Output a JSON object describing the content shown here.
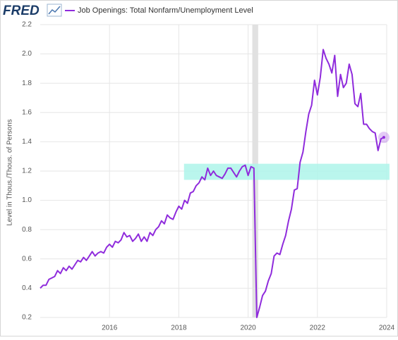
{
  "chart_data": {
    "type": "line",
    "logo": "FRED",
    "title": "Job Openings: Total Nonfarm/Unemployment Level",
    "y_label": "Level in Thous./Thous. of Persons",
    "xlim": [
      2014,
      2024
    ],
    "xticks": [
      2016,
      2018,
      2020,
      2022,
      2024
    ],
    "ylim": [
      0.2,
      2.2
    ],
    "yticks": [
      0.2,
      0.4,
      0.6,
      0.8,
      {
        "value": 1,
        "label": "1.0"
      },
      1.2,
      1.4,
      1.6,
      1.8,
      {
        "value": 2,
        "label": "2.0"
      },
      2.2
    ],
    "grid": true,
    "recession_shading": [
      {
        "xlim": [
          2020.12,
          2020.29
        ],
        "color": "#e1e1e1"
      }
    ],
    "highlight": {
      "xlim": [
        2018.15,
        2024.08
      ],
      "ylim": [
        1.14,
        1.25
      ],
      "color": "#aef5ea"
    },
    "x": [
      2014.0,
      2014.083,
      2014.167,
      2014.25,
      2014.333,
      2014.417,
      2014.5,
      2014.583,
      2014.667,
      2014.75,
      2014.833,
      2014.917,
      2015.0,
      2015.083,
      2015.167,
      2015.25,
      2015.333,
      2015.417,
      2015.5,
      2015.583,
      2015.667,
      2015.75,
      2015.833,
      2015.917,
      2016.0,
      2016.083,
      2016.167,
      2016.25,
      2016.333,
      2016.417,
      2016.5,
      2016.583,
      2016.667,
      2016.75,
      2016.833,
      2016.917,
      2017.0,
      2017.083,
      2017.167,
      2017.25,
      2017.333,
      2017.417,
      2017.5,
      2017.583,
      2017.667,
      2017.75,
      2017.833,
      2017.917,
      2018.0,
      2018.083,
      2018.167,
      2018.25,
      2018.333,
      2018.417,
      2018.5,
      2018.583,
      2018.667,
      2018.75,
      2018.833,
      2018.917,
      2019.0,
      2019.083,
      2019.167,
      2019.25,
      2019.333,
      2019.417,
      2019.5,
      2019.583,
      2019.667,
      2019.75,
      2019.833,
      2019.917,
      2020.0,
      2020.083,
      2020.167,
      2020.25,
      2020.333,
      2020.417,
      2020.5,
      2020.583,
      2020.667,
      2020.75,
      2020.833,
      2020.917,
      2021.0,
      2021.083,
      2021.167,
      2021.25,
      2021.333,
      2021.417,
      2021.5,
      2021.583,
      2021.667,
      2021.75,
      2021.833,
      2021.917,
      2022.0,
      2022.083,
      2022.167,
      2022.25,
      2022.333,
      2022.417,
      2022.5,
      2022.583,
      2022.667,
      2022.75,
      2022.833,
      2022.917,
      2023.0,
      2023.083,
      2023.167,
      2023.25,
      2023.333,
      2023.417,
      2023.5,
      2023.583,
      2023.667,
      2023.75,
      2023.833,
      2023.917
    ],
    "series": [
      {
        "name": "Job Openings: Total Nonfarm/Unemployment Level",
        "color": "#8f2bdc",
        "values": [
          0.4,
          0.42,
          0.42,
          0.46,
          0.47,
          0.48,
          0.52,
          0.5,
          0.54,
          0.52,
          0.55,
          0.53,
          0.56,
          0.59,
          0.58,
          0.61,
          0.59,
          0.62,
          0.65,
          0.62,
          0.64,
          0.65,
          0.64,
          0.68,
          0.7,
          0.68,
          0.72,
          0.71,
          0.73,
          0.78,
          0.75,
          0.76,
          0.72,
          0.74,
          0.77,
          0.72,
          0.75,
          0.72,
          0.78,
          0.76,
          0.8,
          0.82,
          0.86,
          0.84,
          0.9,
          0.88,
          0.87,
          0.92,
          0.96,
          0.94,
          1.0,
          0.98,
          1.05,
          1.06,
          1.1,
          1.12,
          1.16,
          1.14,
          1.22,
          1.17,
          1.2,
          1.17,
          1.16,
          1.15,
          1.18,
          1.22,
          1.22,
          1.19,
          1.16,
          1.2,
          1.23,
          1.24,
          1.17,
          1.23,
          1.22,
          0.2,
          0.27,
          0.35,
          0.38,
          0.45,
          0.5,
          0.62,
          0.64,
          0.63,
          0.7,
          0.76,
          0.86,
          0.94,
          1.07,
          1.08,
          1.26,
          1.33,
          1.47,
          1.59,
          1.65,
          1.82,
          1.72,
          1.84,
          2.03,
          1.97,
          1.93,
          1.87,
          1.99,
          1.71,
          1.86,
          1.77,
          1.8,
          1.93,
          1.86,
          1.66,
          1.64,
          1.73,
          1.52,
          1.52,
          1.49,
          1.47,
          1.46,
          1.34,
          1.42,
          1.43
        ]
      }
    ]
  }
}
